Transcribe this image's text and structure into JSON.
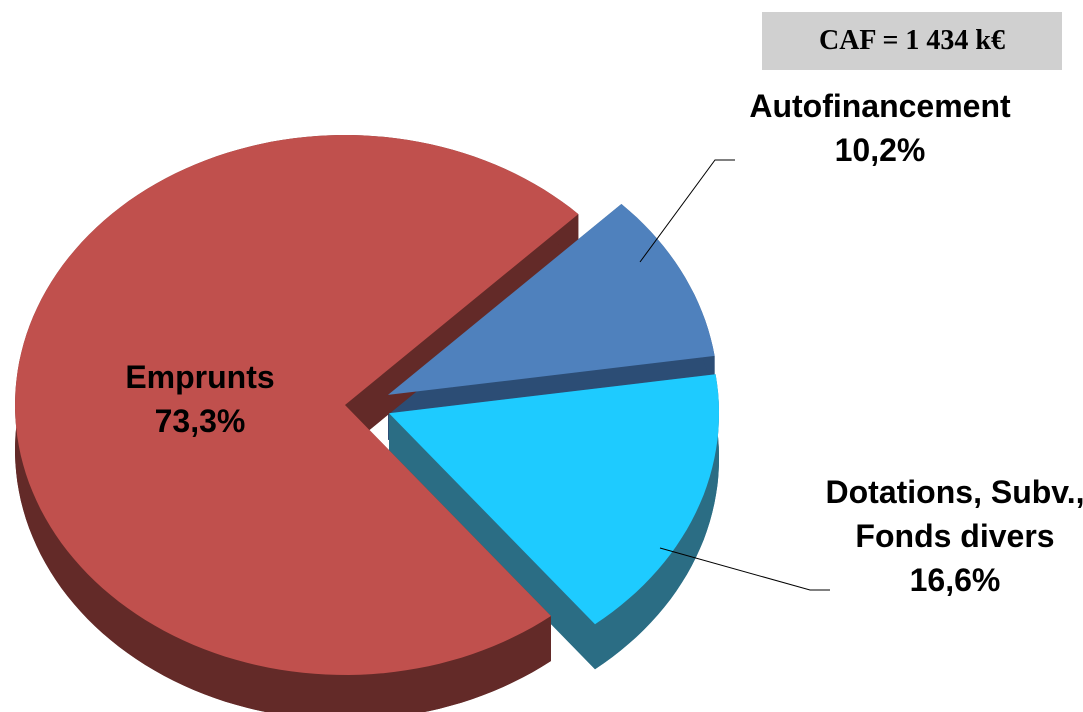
{
  "chart_data": {
    "type": "pie",
    "annotation": "CAF = 1 434 k€",
    "categories": [
      "Autofinancement",
      "Dotations, Subv., Fonds divers",
      "Emprunts"
    ],
    "values": [
      10.2,
      16.6,
      73.3
    ],
    "value_labels": [
      "10,2%",
      "16,6%",
      "73,3%"
    ],
    "colors": [
      "#4f81bd",
      "#1ecbff",
      "#c0504d"
    ],
    "side_colors": [
      "#2c4d75",
      "#2b6d84",
      "#632a28"
    ]
  }
}
